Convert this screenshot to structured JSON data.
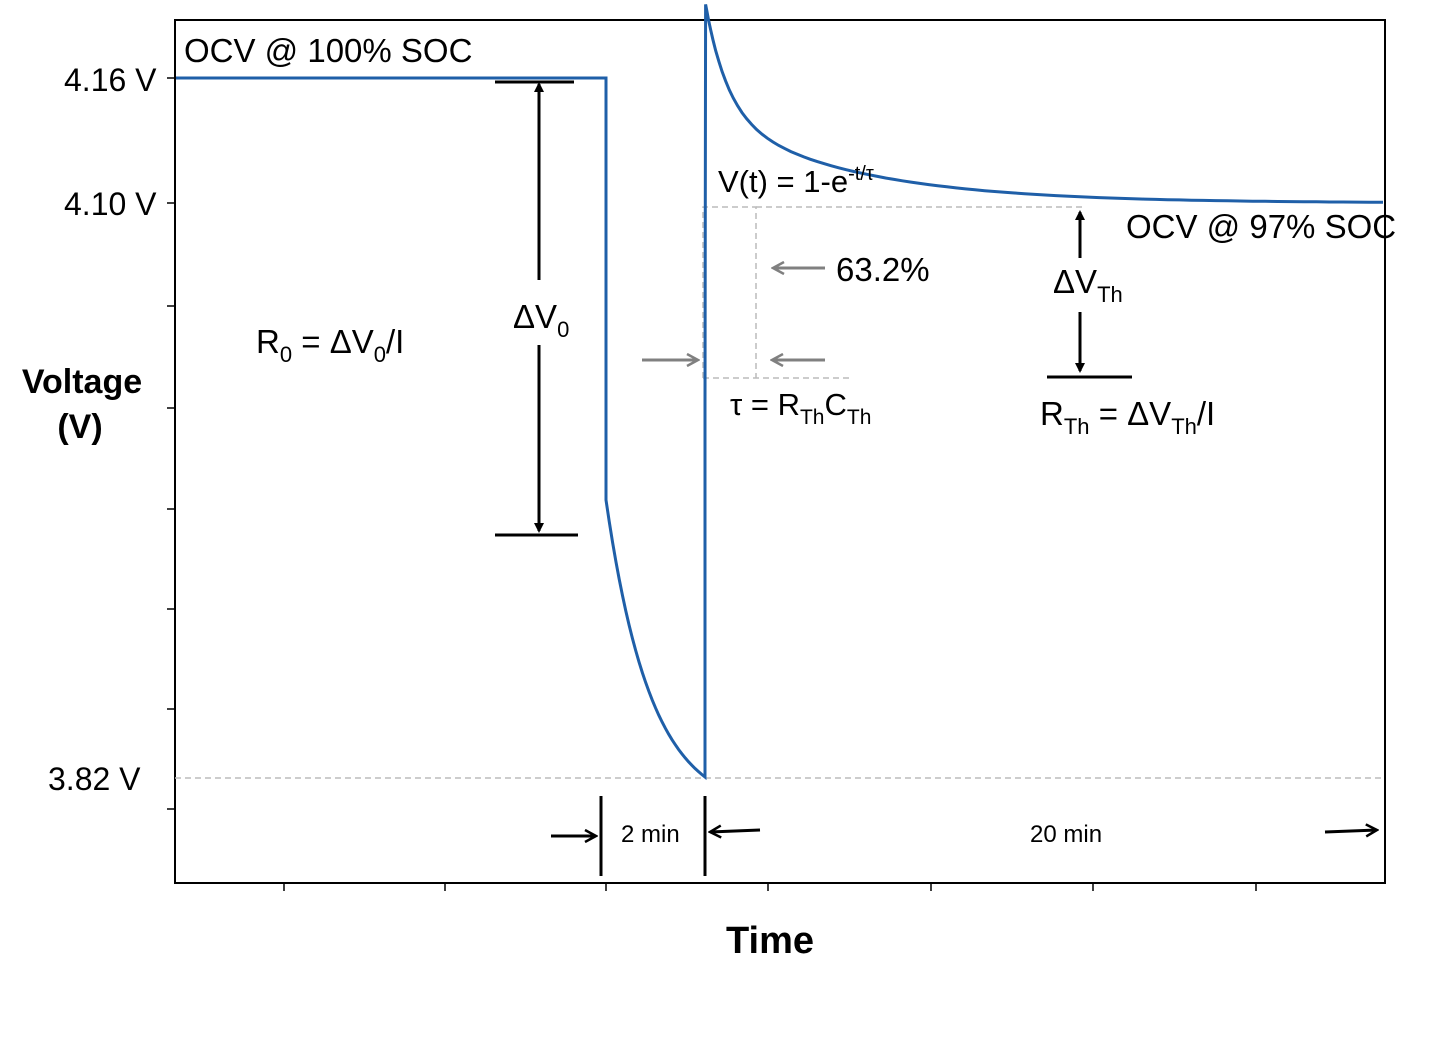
{
  "figure": {
    "xlabel": "Time",
    "ylabel_line1": "Voltage",
    "ylabel_line2": "(V)",
    "y_ticks": {
      "v416": "4.16 V",
      "v410": "4.10 V",
      "v382": "3.82 V"
    }
  },
  "annotations": {
    "ocv_100": "OCV @ 100% SOC",
    "ocv_97": "OCV @ 97% SOC",
    "r0_lhs": "R",
    "r0_sub": "0",
    "r0_mid": " = ΔV",
    "r0_sub2": "0",
    "r0_tail": "/I",
    "dv0_main": "ΔV",
    "dv0_sub": "0",
    "vt_main": "V(t) = 1-e",
    "vt_sup": "-t/τ",
    "pct": "63.2%",
    "tau_main": "τ  = R",
    "tau_sub1": "Th",
    "tau_c": "C",
    "tau_sub2": "Th",
    "dvth_main": "ΔV",
    "dvth_sub": "Th",
    "rth_main": "R",
    "rth_sub": "Th",
    "rth_mid": " = ΔV",
    "rth_sub2": "Th",
    "rth_tail": "/I",
    "two_min": "2 min",
    "twenty_min": "20 min"
  },
  "colors": {
    "curve": "#1f5fa8",
    "grey_arrow": "#808080",
    "dash": "#bbbbbb"
  }
}
